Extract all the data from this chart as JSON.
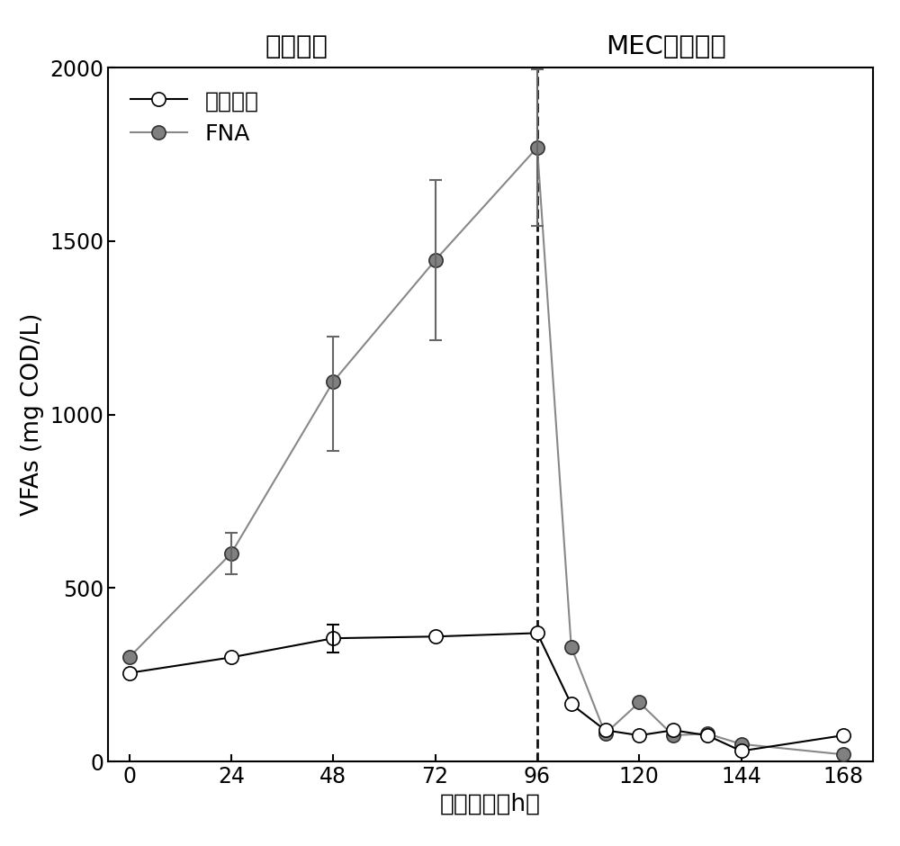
{
  "title_left": "初步发酵",
  "title_right": "MEC梯级产氢",
  "xlabel": "处理时间（h）",
  "ylabel": "VFAs (mg COD/L)",
  "xlim": [
    -5,
    175
  ],
  "ylim": [
    0,
    2000
  ],
  "yticks": [
    0,
    500,
    1000,
    1500,
    2000
  ],
  "xticks": [
    0,
    24,
    48,
    72,
    96,
    120,
    144,
    168
  ],
  "divider_x": 96,
  "untreated_x": [
    0,
    24,
    48,
    72,
    96,
    104,
    112,
    120,
    128,
    136,
    144,
    168
  ],
  "untreated_y": [
    255,
    300,
    355,
    360,
    370,
    165,
    90,
    75,
    90,
    75,
    30,
    75
  ],
  "untreated_yerr": [
    0,
    0,
    40,
    0,
    0,
    0,
    0,
    0,
    0,
    0,
    0,
    0
  ],
  "fna_x": [
    0,
    24,
    48,
    72,
    96,
    104,
    112,
    120,
    128,
    136,
    144,
    168
  ],
  "fna_y": [
    300,
    600,
    1095,
    1445,
    1770,
    330,
    80,
    170,
    75,
    80,
    50,
    20
  ],
  "fna_yerr_upper": [
    0,
    60,
    130,
    230,
    225,
    0,
    0,
    0,
    0,
    0,
    0,
    0
  ],
  "fna_yerr_lower": [
    0,
    60,
    200,
    230,
    225,
    0,
    0,
    0,
    0,
    0,
    0,
    0
  ],
  "untreated_label": "未预处理",
  "fna_label": "FNA",
  "line_color_fna": "#888888",
  "line_color_untreated": "#000000",
  "fna_marker_facecolor": "#808080",
  "fna_marker_edgecolor": "#333333",
  "untreated_marker_facecolor": "#ffffff",
  "untreated_marker_edgecolor": "#000000",
  "errorbar_color": "#666666",
  "dashed_line_color": "#111111",
  "title_fontsize": 21,
  "label_fontsize": 19,
  "tick_fontsize": 17,
  "legend_fontsize": 18
}
